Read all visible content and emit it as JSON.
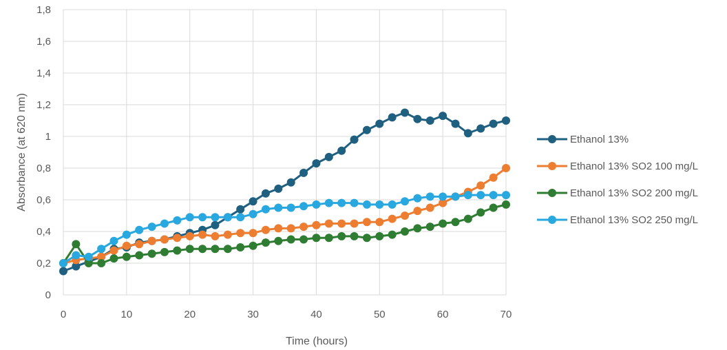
{
  "chart_data": {
    "type": "line",
    "title": "",
    "xlabel": "Time (hours)",
    "ylabel": "Absorbance (at 620 nm)",
    "xlim": [
      0,
      70
    ],
    "ylim": [
      0,
      1.8
    ],
    "xticks": [
      0,
      10,
      20,
      30,
      40,
      50,
      60,
      70
    ],
    "yticks": [
      0,
      0.2,
      0.4,
      0.6,
      0.8,
      1,
      1.2,
      1.4,
      1.6,
      1.8
    ],
    "xtick_labels": [
      "0",
      "10",
      "20",
      "30",
      "40",
      "50",
      "60",
      "70"
    ],
    "ytick_labels": [
      "0",
      "0,2",
      "0,4",
      "0,6",
      "0,8",
      "1",
      "1,2",
      "1,4",
      "1,6",
      "1,8"
    ],
    "grid": true,
    "legend_position": "right",
    "x": [
      0,
      2,
      4,
      6,
      8,
      10,
      12,
      14,
      16,
      18,
      20,
      22,
      24,
      26,
      28,
      30,
      32,
      34,
      36,
      38,
      40,
      42,
      44,
      46,
      48,
      50,
      52,
      54,
      56,
      58,
      60,
      62,
      64,
      66,
      68,
      70
    ],
    "series": [
      {
        "name": "Ethanol 13%",
        "color": "#1f5f7f",
        "values": [
          0.15,
          0.18,
          0.21,
          0.24,
          0.29,
          0.3,
          0.33,
          0.34,
          0.35,
          0.37,
          0.39,
          0.41,
          0.44,
          0.49,
          0.54,
          0.59,
          0.64,
          0.67,
          0.71,
          0.77,
          0.83,
          0.87,
          0.91,
          0.98,
          1.04,
          1.08,
          1.12,
          1.15,
          1.11,
          1.1,
          1.13,
          1.08,
          1.02,
          1.05,
          1.08,
          1.1
        ]
      },
      {
        "name": "Ethanol 13% SO2 100 mg/L",
        "color": "#ed7d31",
        "values": [
          0.2,
          0.22,
          0.23,
          0.24,
          0.28,
          0.31,
          0.32,
          0.34,
          0.35,
          0.36,
          0.37,
          0.38,
          0.37,
          0.38,
          0.39,
          0.39,
          0.41,
          0.42,
          0.42,
          0.43,
          0.44,
          0.45,
          0.45,
          0.45,
          0.46,
          0.46,
          0.48,
          0.5,
          0.53,
          0.55,
          0.58,
          0.62,
          0.65,
          0.69,
          0.74,
          0.8
        ]
      },
      {
        "name": "Ethanol 13% SO2 200 mg/L",
        "color": "#2e7d32",
        "values": [
          0.2,
          0.32,
          0.2,
          0.2,
          0.23,
          0.24,
          0.25,
          0.26,
          0.27,
          0.28,
          0.29,
          0.29,
          0.29,
          0.29,
          0.3,
          0.31,
          0.33,
          0.34,
          0.35,
          0.35,
          0.36,
          0.36,
          0.37,
          0.37,
          0.36,
          0.37,
          0.38,
          0.4,
          0.42,
          0.43,
          0.45,
          0.46,
          0.48,
          0.52,
          0.55,
          0.57
        ]
      },
      {
        "name": "Ethanol 13% SO2 250 mg/L",
        "color": "#29a8e0",
        "values": [
          0.2,
          0.25,
          0.24,
          0.29,
          0.34,
          0.38,
          0.41,
          0.43,
          0.45,
          0.47,
          0.49,
          0.49,
          0.49,
          0.49,
          0.49,
          0.51,
          0.54,
          0.55,
          0.55,
          0.56,
          0.57,
          0.58,
          0.58,
          0.58,
          0.57,
          0.57,
          0.57,
          0.59,
          0.61,
          0.62,
          0.62,
          0.62,
          0.63,
          0.63,
          0.63,
          0.63
        ]
      }
    ]
  }
}
